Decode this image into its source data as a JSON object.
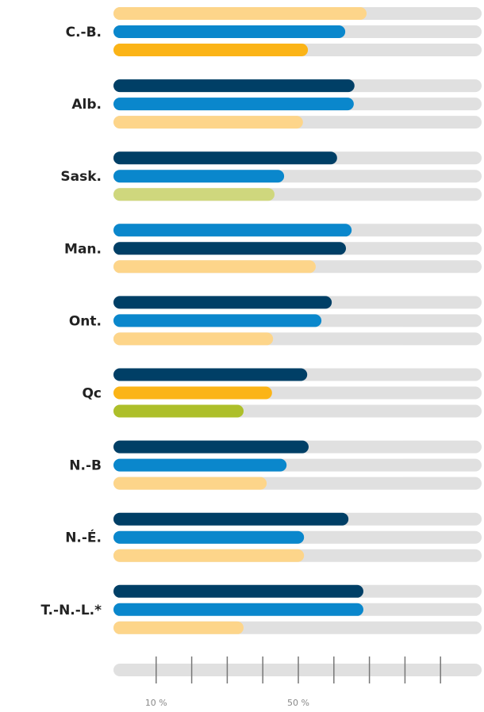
{
  "chart_data": {
    "type": "bar",
    "orientation": "horizontal",
    "track_color": "#e0e0e0",
    "xlim": [
      0,
      100
    ],
    "xticks": [
      {
        "value": 10,
        "label": "10 %"
      },
      20,
      30,
      40,
      {
        "value": 50,
        "label": "50 %"
      },
      60,
      70,
      80,
      90
    ],
    "groups": [
      {
        "label": "C.-B.",
        "bars": [
          {
            "value": 69.2,
            "color": "#fdd58a"
          },
          {
            "value": 63.2,
            "color": "#0a87cc"
          },
          {
            "value": 52.7,
            "color": "#fbb417"
          }
        ]
      },
      {
        "label": "Alb.",
        "bars": [
          {
            "value": 65.8,
            "color": "#003f66"
          },
          {
            "value": 65.6,
            "color": "#0a87cc"
          },
          {
            "value": 51.3,
            "color": "#fdd58a"
          }
        ]
      },
      {
        "label": "Sask.",
        "bars": [
          {
            "value": 60.9,
            "color": "#003f66"
          },
          {
            "value": 46.0,
            "color": "#0a87cc"
          },
          {
            "value": 43.3,
            "color": "#cfd77d"
          }
        ]
      },
      {
        "label": "Man.",
        "bars": [
          {
            "value": 65.0,
            "color": "#0a87cc"
          },
          {
            "value": 63.4,
            "color": "#003f66"
          },
          {
            "value": 54.9,
            "color": "#fdd58a"
          }
        ]
      },
      {
        "label": "Ont.",
        "bars": [
          {
            "value": 59.4,
            "color": "#003f66"
          },
          {
            "value": 56.5,
            "color": "#0a87cc"
          },
          {
            "value": 42.9,
            "color": "#fdd58a"
          }
        ]
      },
      {
        "label": "Qc",
        "bars": [
          {
            "value": 52.5,
            "color": "#003f66"
          },
          {
            "value": 42.6,
            "color": "#fbb417"
          },
          {
            "value": 34.6,
            "color": "#adbf2a"
          }
        ]
      },
      {
        "label": "N.-B",
        "bars": [
          {
            "value": 52.9,
            "color": "#003f66"
          },
          {
            "value": 46.7,
            "color": "#0a87cc"
          },
          {
            "value": 41.1,
            "color": "#fdd58a"
          }
        ]
      },
      {
        "label": "N.-É.",
        "bars": [
          {
            "value": 64.1,
            "color": "#003f66"
          },
          {
            "value": 51.6,
            "color": "#0a87cc"
          },
          {
            "value": 51.6,
            "color": "#fdd58a"
          }
        ]
      },
      {
        "label": "T.-N.-L.*",
        "bars": [
          {
            "value": 68.3,
            "color": "#003f66"
          },
          {
            "value": 68.3,
            "color": "#0a87cc"
          },
          {
            "value": 34.6,
            "color": "#fdd58a"
          }
        ]
      }
    ]
  }
}
